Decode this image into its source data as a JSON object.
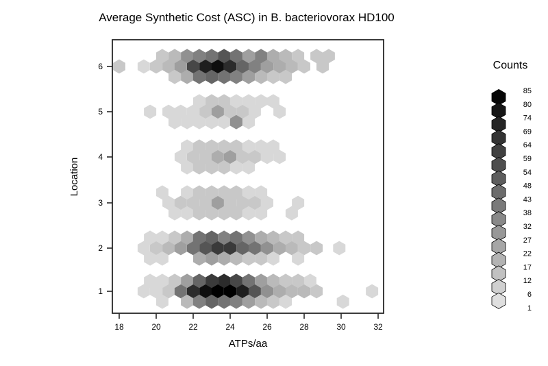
{
  "chart_data": {
    "type": "hexbin",
    "title": "Average Synthetic Cost (ASC) in B. bacteriovorax HD100",
    "xlabel": "ATPs/aa",
    "ylabel": "Location",
    "x_ticks": [
      18,
      20,
      22,
      24,
      26,
      28,
      30,
      32
    ],
    "y_ticks": [
      1,
      2,
      3,
      4,
      5,
      6
    ],
    "xlim": [
      17.6,
      32.3
    ],
    "ylim": [
      0.5,
      6.5
    ],
    "grid": false,
    "legend": {
      "title": "Counts",
      "position": "right",
      "breaks": [
        85,
        80,
        74,
        69,
        64,
        59,
        54,
        48,
        43,
        38,
        32,
        27,
        22,
        17,
        12,
        6,
        1
      ]
    },
    "color_scale": {
      "min_count": 1,
      "max_count": 85,
      "light": "#e6e6e6",
      "dark": "#000000"
    },
    "hex_note": "each hex = [ATPs/aa x-center, sub-row offset (-1 up / 0 mid / +1 down), count]",
    "rows": [
      {
        "location": 6,
        "hexes": [
          [
            18.0,
            0,
            12
          ],
          [
            19.33,
            0,
            6
          ],
          [
            20.0,
            0,
            12
          ],
          [
            20.67,
            0,
            17
          ],
          [
            21.33,
            0,
            27
          ],
          [
            22.0,
            0,
            59
          ],
          [
            22.67,
            0,
            74
          ],
          [
            23.33,
            0,
            80
          ],
          [
            24.0,
            0,
            69
          ],
          [
            24.67,
            0,
            48
          ],
          [
            25.33,
            0,
            38
          ],
          [
            26.0,
            0,
            27
          ],
          [
            26.67,
            0,
            22
          ],
          [
            27.33,
            0,
            17
          ],
          [
            28.0,
            0,
            12
          ],
          [
            29.0,
            0,
            12
          ],
          [
            20.33,
            -1,
            12
          ],
          [
            21.0,
            -1,
            17
          ],
          [
            21.67,
            -1,
            32
          ],
          [
            22.33,
            -1,
            38
          ],
          [
            23.0,
            -1,
            43
          ],
          [
            23.67,
            -1,
            54
          ],
          [
            24.33,
            -1,
            43
          ],
          [
            25.0,
            -1,
            27
          ],
          [
            25.67,
            -1,
            38
          ],
          [
            26.33,
            -1,
            22
          ],
          [
            27.0,
            -1,
            17
          ],
          [
            27.67,
            -1,
            12
          ],
          [
            28.67,
            -1,
            12
          ],
          [
            29.33,
            -1,
            12
          ],
          [
            21.0,
            1,
            12
          ],
          [
            21.67,
            1,
            22
          ],
          [
            22.33,
            1,
            43
          ],
          [
            23.0,
            1,
            48
          ],
          [
            23.67,
            1,
            43
          ],
          [
            24.33,
            1,
            38
          ],
          [
            25.0,
            1,
            27
          ],
          [
            25.67,
            1,
            17
          ],
          [
            26.33,
            1,
            12
          ],
          [
            27.0,
            1,
            12
          ]
        ]
      },
      {
        "location": 5,
        "hexes": [
          [
            19.67,
            0,
            6
          ],
          [
            20.67,
            0,
            6
          ],
          [
            21.33,
            0,
            6
          ],
          [
            22.0,
            0,
            6
          ],
          [
            22.67,
            0,
            12
          ],
          [
            23.33,
            0,
            27
          ],
          [
            24.0,
            0,
            12
          ],
          [
            24.67,
            0,
            12
          ],
          [
            25.33,
            0,
            6
          ],
          [
            26.67,
            0,
            6
          ],
          [
            22.33,
            -1,
            6
          ],
          [
            23.0,
            -1,
            12
          ],
          [
            23.67,
            -1,
            12
          ],
          [
            24.33,
            -1,
            6
          ],
          [
            25.0,
            -1,
            6
          ],
          [
            25.67,
            -1,
            6
          ],
          [
            26.33,
            -1,
            6
          ],
          [
            21.0,
            1,
            6
          ],
          [
            21.67,
            1,
            6
          ],
          [
            22.33,
            1,
            6
          ],
          [
            23.0,
            1,
            6
          ],
          [
            23.67,
            1,
            6
          ],
          [
            24.33,
            1,
            32
          ],
          [
            25.0,
            1,
            6
          ]
        ]
      },
      {
        "location": 4,
        "hexes": [
          [
            21.33,
            0,
            6
          ],
          [
            22.0,
            0,
            12
          ],
          [
            22.67,
            0,
            12
          ],
          [
            23.33,
            0,
            22
          ],
          [
            24.0,
            0,
            27
          ],
          [
            24.67,
            0,
            12
          ],
          [
            25.33,
            0,
            12
          ],
          [
            26.0,
            0,
            6
          ],
          [
            26.67,
            0,
            6
          ],
          [
            21.67,
            -1,
            6
          ],
          [
            22.33,
            -1,
            12
          ],
          [
            23.0,
            -1,
            12
          ],
          [
            23.67,
            -1,
            12
          ],
          [
            24.33,
            -1,
            12
          ],
          [
            25.0,
            -1,
            6
          ],
          [
            25.67,
            -1,
            6
          ],
          [
            26.33,
            -1,
            6
          ],
          [
            21.67,
            1,
            6
          ],
          [
            22.33,
            1,
            12
          ],
          [
            23.0,
            1,
            12
          ],
          [
            23.67,
            1,
            12
          ],
          [
            24.33,
            1,
            6
          ],
          [
            25.0,
            1,
            6
          ]
        ]
      },
      {
        "location": 3,
        "hexes": [
          [
            20.67,
            0,
            6
          ],
          [
            21.33,
            0,
            12
          ],
          [
            22.0,
            0,
            12
          ],
          [
            22.67,
            0,
            12
          ],
          [
            23.33,
            0,
            27
          ],
          [
            24.0,
            0,
            12
          ],
          [
            24.67,
            0,
            12
          ],
          [
            25.33,
            0,
            12
          ],
          [
            26.0,
            0,
            6
          ],
          [
            27.67,
            0,
            6
          ],
          [
            20.33,
            -1,
            6
          ],
          [
            21.67,
            -1,
            6
          ],
          [
            22.33,
            -1,
            12
          ],
          [
            23.0,
            -1,
            12
          ],
          [
            23.67,
            -1,
            12
          ],
          [
            24.33,
            -1,
            12
          ],
          [
            25.0,
            -1,
            6
          ],
          [
            25.67,
            -1,
            6
          ],
          [
            21.0,
            1,
            6
          ],
          [
            21.67,
            1,
            6
          ],
          [
            22.33,
            1,
            12
          ],
          [
            23.0,
            1,
            12
          ],
          [
            23.67,
            1,
            12
          ],
          [
            24.33,
            1,
            12
          ],
          [
            25.0,
            1,
            6
          ],
          [
            25.67,
            1,
            6
          ],
          [
            27.33,
            1,
            6
          ]
        ]
      },
      {
        "location": 2,
        "hexes": [
          [
            19.33,
            0,
            6
          ],
          [
            20.0,
            0,
            12
          ],
          [
            20.67,
            0,
            17
          ],
          [
            21.33,
            0,
            27
          ],
          [
            22.0,
            0,
            43
          ],
          [
            22.67,
            0,
            54
          ],
          [
            23.33,
            0,
            64
          ],
          [
            24.0,
            0,
            64
          ],
          [
            24.67,
            0,
            48
          ],
          [
            25.33,
            0,
            43
          ],
          [
            26.0,
            0,
            32
          ],
          [
            26.67,
            0,
            22
          ],
          [
            27.33,
            0,
            17
          ],
          [
            28.0,
            0,
            12
          ],
          [
            28.67,
            0,
            12
          ],
          [
            29.9,
            0,
            6
          ],
          [
            19.67,
            -1,
            6
          ],
          [
            20.33,
            -1,
            6
          ],
          [
            21.0,
            -1,
            12
          ],
          [
            21.67,
            -1,
            22
          ],
          [
            22.33,
            -1,
            43
          ],
          [
            23.0,
            -1,
            48
          ],
          [
            23.67,
            -1,
            38
          ],
          [
            24.33,
            -1,
            43
          ],
          [
            25.0,
            -1,
            32
          ],
          [
            25.67,
            -1,
            22
          ],
          [
            26.33,
            -1,
            17
          ],
          [
            27.0,
            -1,
            12
          ],
          [
            27.67,
            -1,
            12
          ],
          [
            19.67,
            1,
            6
          ],
          [
            20.33,
            1,
            6
          ],
          [
            22.33,
            1,
            22
          ],
          [
            23.0,
            1,
            27
          ],
          [
            23.67,
            1,
            22
          ],
          [
            24.33,
            1,
            17
          ],
          [
            25.0,
            1,
            12
          ],
          [
            25.67,
            1,
            12
          ],
          [
            26.33,
            1,
            6
          ],
          [
            27.67,
            1,
            6
          ]
        ]
      },
      {
        "location": 1,
        "hexes": [
          [
            19.33,
            0,
            6
          ],
          [
            20.0,
            0,
            6
          ],
          [
            20.67,
            0,
            12
          ],
          [
            21.33,
            0,
            43
          ],
          [
            22.0,
            0,
            69
          ],
          [
            22.67,
            0,
            80
          ],
          [
            23.33,
            0,
            85
          ],
          [
            24.0,
            0,
            85
          ],
          [
            24.67,
            0,
            74
          ],
          [
            25.33,
            0,
            54
          ],
          [
            26.0,
            0,
            32
          ],
          [
            26.67,
            0,
            22
          ],
          [
            27.33,
            0,
            17
          ],
          [
            28.0,
            0,
            17
          ],
          [
            28.67,
            0,
            12
          ],
          [
            31.67,
            0,
            6
          ],
          [
            19.67,
            -1,
            6
          ],
          [
            20.33,
            -1,
            6
          ],
          [
            21.0,
            -1,
            12
          ],
          [
            21.67,
            -1,
            27
          ],
          [
            22.33,
            -1,
            48
          ],
          [
            23.0,
            -1,
            64
          ],
          [
            23.67,
            -1,
            69
          ],
          [
            24.33,
            -1,
            59
          ],
          [
            25.0,
            -1,
            43
          ],
          [
            25.67,
            -1,
            27
          ],
          [
            26.33,
            -1,
            17
          ],
          [
            27.0,
            -1,
            12
          ],
          [
            27.67,
            -1,
            12
          ],
          [
            28.33,
            -1,
            6
          ],
          [
            20.33,
            1,
            6
          ],
          [
            21.67,
            1,
            17
          ],
          [
            22.33,
            1,
            38
          ],
          [
            23.0,
            1,
            48
          ],
          [
            23.67,
            1,
            43
          ],
          [
            24.33,
            1,
            38
          ],
          [
            25.0,
            1,
            27
          ],
          [
            25.67,
            1,
            17
          ],
          [
            26.33,
            1,
            12
          ],
          [
            27.0,
            1,
            6
          ],
          [
            30.1,
            1,
            6
          ]
        ]
      }
    ]
  }
}
